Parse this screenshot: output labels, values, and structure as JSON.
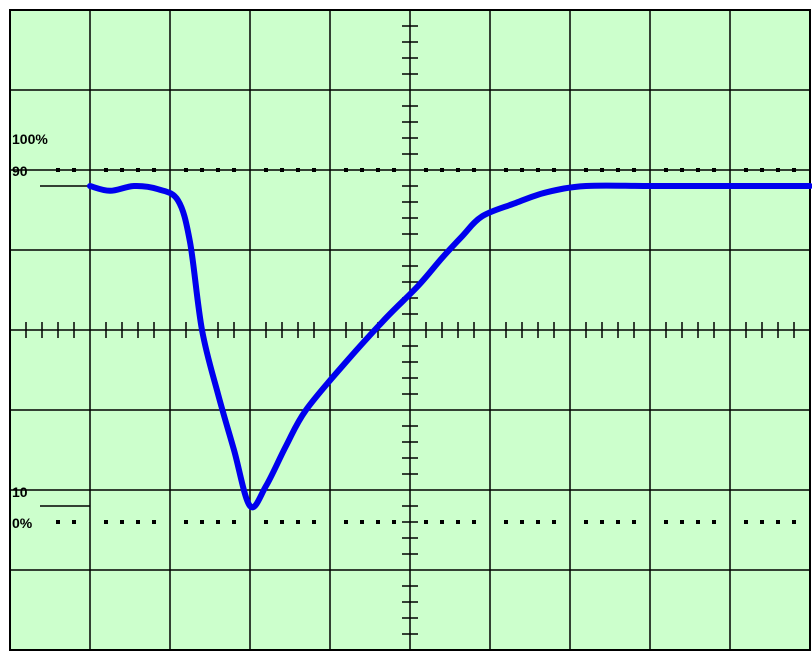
{
  "screen": {
    "background": "#ccffcc",
    "grid_color": "#000000",
    "trace_color": "#0000ee"
  },
  "labels": {
    "pct100": "100%",
    "pct90": "90",
    "pct10": "10",
    "pct0": "0%"
  },
  "chart_data": {
    "type": "line",
    "title": "",
    "xlabel": "",
    "ylabel": "",
    "grid": true,
    "x_divisions": 10,
    "y_divisions": 8,
    "xlim": [
      0,
      10
    ],
    "ylim": [
      0,
      8
    ],
    "reference_levels": [
      {
        "label": "100%",
        "y": 6.0,
        "style": "dotted"
      },
      {
        "label": "90",
        "y": 5.8,
        "style": "solid-tick"
      },
      {
        "label": "10",
        "y": 1.8,
        "style": "solid-tick"
      },
      {
        "label": "0%",
        "y": 1.6,
        "style": "dotted"
      }
    ],
    "series": [
      {
        "values": [
          [
            1.0,
            5.8
          ],
          [
            1.25,
            5.74
          ],
          [
            1.55,
            5.8
          ],
          [
            1.85,
            5.76
          ],
          [
            2.1,
            5.62
          ],
          [
            2.25,
            5.1
          ],
          [
            2.4,
            4.0
          ],
          [
            2.6,
            3.2
          ],
          [
            2.8,
            2.5
          ],
          [
            3.0,
            1.8
          ],
          [
            3.2,
            2.05
          ],
          [
            3.45,
            2.55
          ],
          [
            3.7,
            3.0
          ],
          [
            4.2,
            3.6
          ],
          [
            4.7,
            4.15
          ],
          [
            5.1,
            4.55
          ],
          [
            5.4,
            4.9
          ],
          [
            5.65,
            5.17
          ],
          [
            5.9,
            5.42
          ],
          [
            6.3,
            5.58
          ],
          [
            6.7,
            5.72
          ],
          [
            7.2,
            5.8
          ],
          [
            8.0,
            5.8
          ],
          [
            9.0,
            5.8
          ],
          [
            10.0,
            5.8
          ]
        ]
      }
    ]
  }
}
